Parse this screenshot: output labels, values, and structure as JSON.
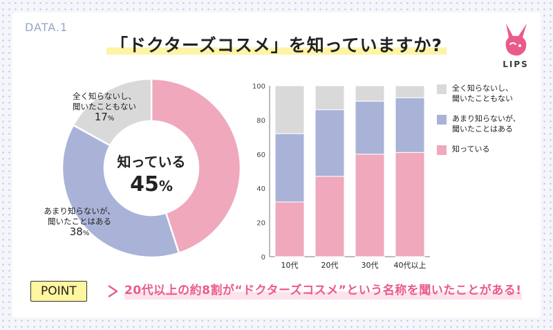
{
  "header": {
    "data_label": "DATA.1",
    "title": "「ドクターズコスメ」を知っていますか?",
    "logo_text": "LIPS"
  },
  "colors": {
    "pink": "#efa8bc",
    "blue": "#a9b3d8",
    "gray": "#d9d9d9",
    "accent": "#ea5b8a",
    "highlight": "#fff3a6"
  },
  "point": {
    "badge": "POINT",
    "text": "20代以上の約8割が“ドクターズコスメ”という名称を聞いたことがある!"
  },
  "pie_labels": {
    "unknown_line1": "全く知らないし、",
    "unknown_line2": "聞いたこともない",
    "unknown_pct": "17",
    "heard_line1": "あまり知らないが、",
    "heard_line2": "聞いたことはある",
    "heard_pct": "38",
    "known_label": "知っている",
    "known_pct": "45",
    "pct_sign": "%"
  },
  "chart_data": [
    {
      "type": "pie",
      "donut": true,
      "slices": [
        {
          "name": "知っている",
          "value": 45,
          "color": "#efa8bc"
        },
        {
          "name": "あまり知らないが、聞いたことはある",
          "value": 38,
          "color": "#a9b3d8"
        },
        {
          "name": "全く知らないし、聞いたこともない",
          "value": 17,
          "color": "#d9d9d9"
        }
      ]
    },
    {
      "type": "bar",
      "stacked": true,
      "categories": [
        "10代",
        "20代",
        "30代",
        "40代以上"
      ],
      "series": [
        {
          "name": "知っている",
          "values": [
            32,
            47,
            60,
            61
          ],
          "color": "#efa8bc"
        },
        {
          "name": "あまり知らないが、聞いたことはある",
          "values": [
            40,
            39,
            31,
            32
          ],
          "color": "#a9b3d8"
        },
        {
          "name": "全く知らないし、聞いたこともない",
          "values": [
            28,
            14,
            9,
            7
          ],
          "color": "#d9d9d9"
        }
      ],
      "ylim": [
        0,
        100
      ],
      "yticks": [
        "0",
        "20",
        "40",
        "60",
        "80",
        "100"
      ],
      "legend": {
        "position": "right",
        "items": [
          {
            "label": "全く知らないし、\n聞いたこともない",
            "color": "#d9d9d9"
          },
          {
            "label": "あまり知らないが、\n聞いたことはある",
            "color": "#a9b3d8"
          },
          {
            "label": "知っている",
            "color": "#efa8bc"
          }
        ]
      }
    }
  ]
}
